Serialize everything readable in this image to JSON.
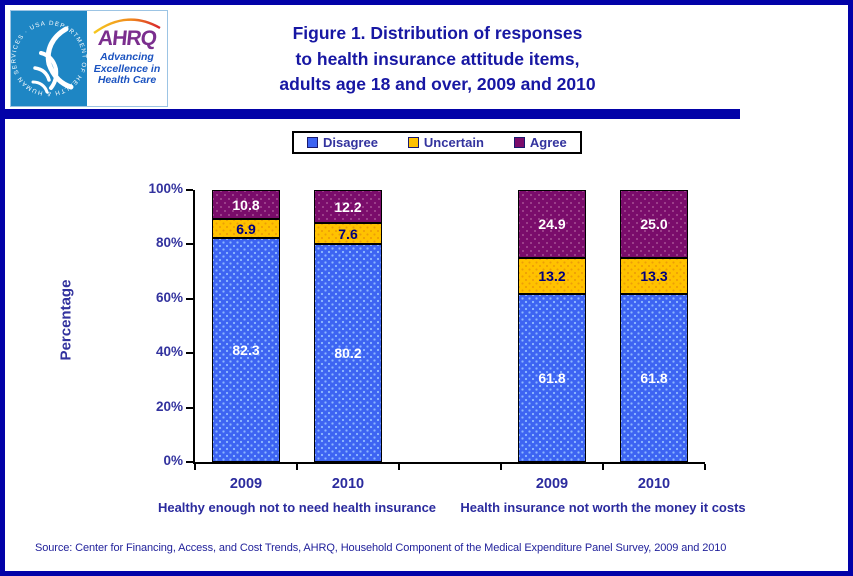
{
  "page": {
    "border_color": "#0202A8",
    "background": "#FFFFFF",
    "navy_text": "#2B2B9E"
  },
  "header": {
    "title_lines": [
      "Figure 1. Distribution of responses",
      "to health insurance attitude items,",
      "adults age 18 and over, 2009 and 2010"
    ],
    "title_color": "#1717A3",
    "logo": {
      "seal_text": "DEPARTMENT OF HEALTH & HUMAN SERVICES · USA ·",
      "acronym": "AHRQ",
      "acronym_color": "#7B2E8E",
      "tagline_lines": [
        "Advancing",
        "Excellence in",
        "Health Care"
      ],
      "tagline_color": "#1B53C0",
      "seal_background": "#1E86C4"
    }
  },
  "legend": {
    "items": [
      {
        "label": "Disagree",
        "color": "#3D64F2"
      },
      {
        "label": "Uncertain",
        "color": "#FFC200"
      },
      {
        "label": "Agree",
        "color": "#7A0C6B"
      }
    ]
  },
  "chart_data": {
    "type": "bar",
    "stacked": true,
    "title": "Figure 1. Distribution of responses to health insurance attitude items, adults age 18 and over, 2009 and 2010",
    "xlabel": "",
    "ylabel": "Percentage",
    "ylim": [
      0,
      100
    ],
    "ytick_labels": [
      "0%",
      "20%",
      "40%",
      "60%",
      "80%",
      "100%"
    ],
    "grid": false,
    "legend_position": "top",
    "categories": [
      "2009",
      "2010",
      "2009",
      "2010"
    ],
    "groups": [
      {
        "label": "Healthy enough not to need health insurance",
        "categories": [
          "2009",
          "2010"
        ]
      },
      {
        "label": "Health insurance not worth the money it costs",
        "categories": [
          "2009",
          "2010"
        ]
      }
    ],
    "series": [
      {
        "name": "Disagree",
        "color": "#3D64F2",
        "label_color": "#FFFFFF",
        "values": [
          82.3,
          80.2,
          61.8,
          61.8
        ]
      },
      {
        "name": "Uncertain",
        "color": "#FFC200",
        "label_color": "#00007E",
        "values": [
          6.9,
          7.6,
          13.2,
          13.3
        ]
      },
      {
        "name": "Agree",
        "color": "#7A0C6B",
        "label_color": "#FFFFFF",
        "values": [
          10.8,
          12.2,
          24.9,
          25.0
        ]
      }
    ]
  },
  "footer": {
    "source": "Source: Center for Financing, Access, and Cost Trends, AHRQ, Household Component of the Medical Expenditure Panel Survey,  2009 and 2010"
  }
}
